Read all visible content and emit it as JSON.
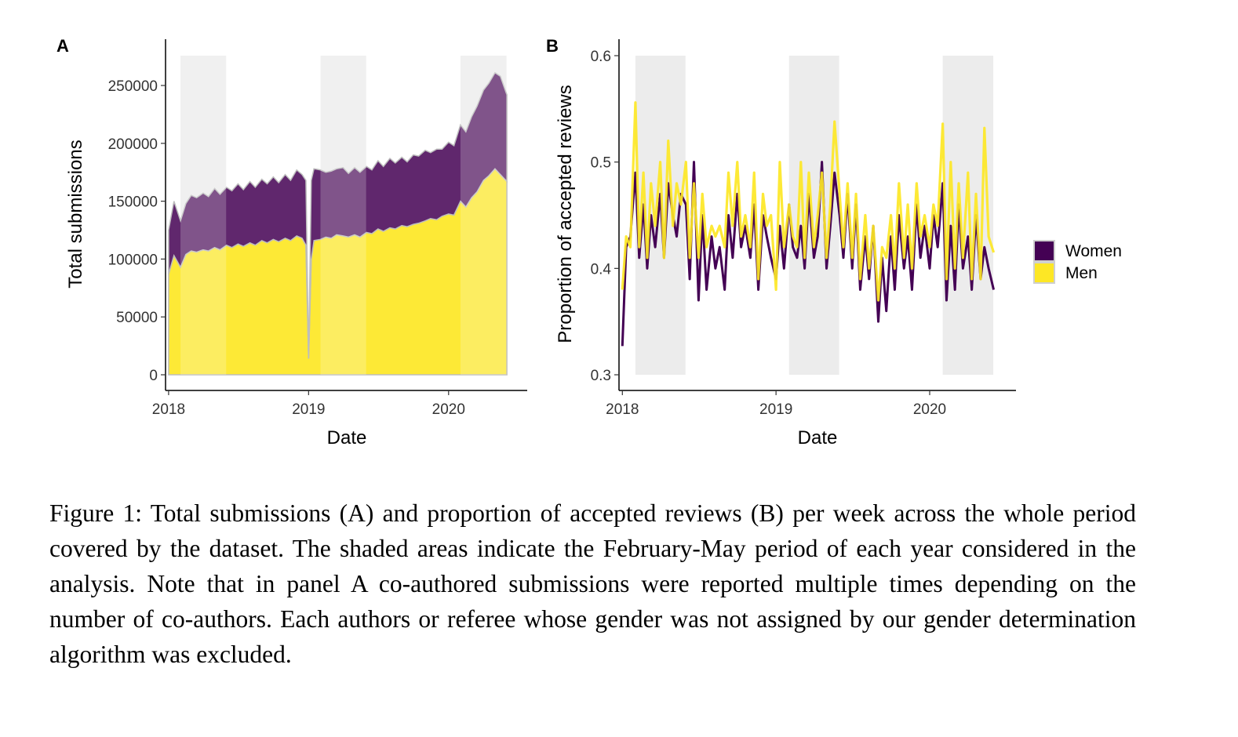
{
  "chart_data": [
    {
      "type": "area",
      "panel": "A",
      "xlabel": "Date",
      "ylabel": "Total submissions",
      "x_ticks": [
        "2018",
        "2019",
        "2020"
      ],
      "y_ticks": [
        0,
        50000,
        100000,
        150000,
        200000,
        250000
      ],
      "ylim": [
        0,
        290000
      ],
      "xlim": [
        "2017-12-24",
        "2020-07-24"
      ],
      "shaded_periods": [
        [
          "2018-02-01",
          "2018-05-31"
        ],
        [
          "2019-02-01",
          "2019-05-31"
        ],
        [
          "2020-02-01",
          "2020-05-31"
        ]
      ],
      "stacked": true,
      "series": [
        {
          "name": "Men",
          "x": [
            "2018-01-01",
            "2018-01-15",
            "2018-02-01",
            "2018-02-15",
            "2018-03-01",
            "2018-03-15",
            "2018-04-01",
            "2018-04-15",
            "2018-05-01",
            "2018-05-15",
            "2018-06-01",
            "2018-06-15",
            "2018-07-01",
            "2018-07-15",
            "2018-08-01",
            "2018-08-15",
            "2018-09-01",
            "2018-09-15",
            "2018-10-01",
            "2018-10-15",
            "2018-11-01",
            "2018-11-15",
            "2018-12-01",
            "2018-12-15",
            "2018-12-25",
            "2019-01-01",
            "2019-01-08",
            "2019-01-15",
            "2019-02-01",
            "2019-02-15",
            "2019-03-01",
            "2019-03-15",
            "2019-04-01",
            "2019-04-15",
            "2019-05-01",
            "2019-05-15",
            "2019-06-01",
            "2019-06-15",
            "2019-07-01",
            "2019-07-15",
            "2019-08-01",
            "2019-08-15",
            "2019-09-01",
            "2019-09-15",
            "2019-10-01",
            "2019-10-15",
            "2019-11-01",
            "2019-11-15",
            "2019-12-01",
            "2019-12-15",
            "2020-01-01",
            "2020-01-15",
            "2020-02-01",
            "2020-02-15",
            "2020-03-01",
            "2020-03-15",
            "2020-04-01",
            "2020-04-15",
            "2020-05-01",
            "2020-05-15",
            "2020-06-01"
          ],
          "values": [
            87000,
            103000,
            93000,
            104000,
            107000,
            106000,
            108000,
            107000,
            110000,
            108000,
            112000,
            110000,
            113000,
            111000,
            114000,
            112000,
            116000,
            114000,
            117000,
            115000,
            118000,
            116000,
            120000,
            118000,
            112000,
            14000,
            100000,
            116000,
            117000,
            119000,
            118000,
            121000,
            120000,
            119000,
            121000,
            119000,
            123000,
            122000,
            126000,
            124000,
            127000,
            126000,
            129000,
            128000,
            130000,
            131000,
            133000,
            135000,
            134000,
            137000,
            139000,
            138000,
            150000,
            145000,
            153000,
            158000,
            168000,
            172000,
            178000,
            173000,
            167000
          ]
        },
        {
          "name": "Women",
          "x": [
            "2018-01-01",
            "2018-01-15",
            "2018-02-01",
            "2018-02-15",
            "2018-03-01",
            "2018-03-15",
            "2018-04-01",
            "2018-04-15",
            "2018-05-01",
            "2018-05-15",
            "2018-06-01",
            "2018-06-15",
            "2018-07-01",
            "2018-07-15",
            "2018-08-01",
            "2018-08-15",
            "2018-09-01",
            "2018-09-15",
            "2018-10-01",
            "2018-10-15",
            "2018-11-01",
            "2018-11-15",
            "2018-12-01",
            "2018-12-15",
            "2018-12-25",
            "2019-01-01",
            "2019-01-08",
            "2019-01-15",
            "2019-02-01",
            "2019-02-15",
            "2019-03-01",
            "2019-03-15",
            "2019-04-01",
            "2019-04-15",
            "2019-05-01",
            "2019-05-15",
            "2019-06-01",
            "2019-06-15",
            "2019-07-01",
            "2019-07-15",
            "2019-08-01",
            "2019-08-15",
            "2019-09-01",
            "2019-09-15",
            "2019-10-01",
            "2019-10-15",
            "2019-11-01",
            "2019-11-15",
            "2019-12-01",
            "2019-12-15",
            "2020-01-01",
            "2020-01-15",
            "2020-02-01",
            "2020-02-15",
            "2020-03-01",
            "2020-03-15",
            "2020-04-01",
            "2020-04-15",
            "2020-05-01",
            "2020-05-15",
            "2020-06-01"
          ],
          "values": [
            38000,
            47000,
            40000,
            44000,
            48000,
            47000,
            49000,
            47000,
            51000,
            48000,
            50000,
            49000,
            52000,
            49000,
            53000,
            50000,
            53000,
            51000,
            54000,
            51000,
            55000,
            52000,
            57000,
            55000,
            56000,
            0,
            68000,
            62000,
            60000,
            56000,
            58000,
            57000,
            59000,
            55000,
            58000,
            56000,
            57000,
            55000,
            59000,
            56000,
            60000,
            57000,
            59000,
            56000,
            60000,
            58000,
            61000,
            57000,
            61000,
            58000,
            62000,
            60000,
            66000,
            65000,
            70000,
            74000,
            78000,
            80000,
            83000,
            85000,
            75000
          ]
        }
      ]
    },
    {
      "type": "line",
      "panel": "B",
      "xlabel": "Date",
      "ylabel": "Proportion of accepted reviews",
      "x_ticks": [
        "2018",
        "2019",
        "2020"
      ],
      "y_ticks": [
        0.3,
        0.4,
        0.5,
        0.6
      ],
      "ylim": [
        0.3,
        0.6
      ],
      "xlim": [
        "2017-12-24",
        "2020-07-24"
      ],
      "shaded_periods": [
        [
          "2018-02-01",
          "2018-05-31"
        ],
        [
          "2019-02-01",
          "2019-05-31"
        ],
        [
          "2020-02-01",
          "2020-05-31"
        ]
      ],
      "legend": {
        "placement": "right",
        "entries": [
          "Women",
          "Men"
        ]
      },
      "series": [
        {
          "name": "Women",
          "x": [
            "2018-01-01",
            "2018-01-10",
            "2018-01-20",
            "2018-02-01",
            "2018-02-10",
            "2018-02-20",
            "2018-03-01",
            "2018-03-10",
            "2018-03-20",
            "2018-04-01",
            "2018-04-10",
            "2018-04-20",
            "2018-05-01",
            "2018-05-10",
            "2018-05-20",
            "2018-06-01",
            "2018-06-10",
            "2018-06-20",
            "2018-07-01",
            "2018-07-10",
            "2018-07-20",
            "2018-08-01",
            "2018-08-10",
            "2018-08-20",
            "2018-09-01",
            "2018-09-10",
            "2018-09-20",
            "2018-10-01",
            "2018-10-10",
            "2018-10-20",
            "2018-11-01",
            "2018-11-10",
            "2018-11-20",
            "2018-12-01",
            "2018-12-10",
            "2018-12-20",
            "2019-01-01",
            "2019-01-10",
            "2019-01-20",
            "2019-02-01",
            "2019-02-10",
            "2019-02-20",
            "2019-03-01",
            "2019-03-10",
            "2019-03-20",
            "2019-04-01",
            "2019-04-10",
            "2019-04-20",
            "2019-05-01",
            "2019-05-10",
            "2019-05-20",
            "2019-06-01",
            "2019-06-10",
            "2019-06-20",
            "2019-07-01",
            "2019-07-10",
            "2019-07-20",
            "2019-08-01",
            "2019-08-10",
            "2019-08-20",
            "2019-09-01",
            "2019-09-10",
            "2019-09-20",
            "2019-10-01",
            "2019-10-10",
            "2019-10-20",
            "2019-11-01",
            "2019-11-10",
            "2019-11-20",
            "2019-12-01",
            "2019-12-10",
            "2019-12-20",
            "2020-01-01",
            "2020-01-10",
            "2020-01-20",
            "2020-02-01",
            "2020-02-10",
            "2020-02-20",
            "2020-03-01",
            "2020-03-10",
            "2020-03-20",
            "2020-04-01",
            "2020-04-10",
            "2020-04-20",
            "2020-05-01",
            "2020-05-10",
            "2020-05-20",
            "2020-06-01"
          ],
          "values": [
            0.327,
            0.42,
            0.43,
            0.49,
            0.41,
            0.46,
            0.4,
            0.45,
            0.42,
            0.47,
            0.41,
            0.48,
            0.45,
            0.43,
            0.47,
            0.46,
            0.39,
            0.5,
            0.37,
            0.45,
            0.38,
            0.43,
            0.4,
            0.42,
            0.38,
            0.45,
            0.41,
            0.47,
            0.42,
            0.44,
            0.41,
            0.46,
            0.38,
            0.45,
            0.43,
            0.41,
            0.39,
            0.44,
            0.4,
            0.46,
            0.42,
            0.41,
            0.44,
            0.4,
            0.47,
            0.41,
            0.43,
            0.5,
            0.4,
            0.44,
            0.49,
            0.45,
            0.41,
            0.47,
            0.4,
            0.46,
            0.38,
            0.43,
            0.39,
            0.44,
            0.35,
            0.41,
            0.36,
            0.43,
            0.38,
            0.45,
            0.4,
            0.43,
            0.38,
            0.46,
            0.41,
            0.44,
            0.4,
            0.45,
            0.42,
            0.48,
            0.37,
            0.44,
            0.38,
            0.46,
            0.4,
            0.43,
            0.38,
            0.45,
            0.39,
            0.42,
            0.4,
            0.38
          ]
        },
        {
          "name": "Men",
          "x": [
            "2018-01-01",
            "2018-01-10",
            "2018-01-20",
            "2018-02-01",
            "2018-02-10",
            "2018-02-20",
            "2018-03-01",
            "2018-03-10",
            "2018-03-20",
            "2018-04-01",
            "2018-04-10",
            "2018-04-20",
            "2018-05-01",
            "2018-05-10",
            "2018-05-20",
            "2018-06-01",
            "2018-06-10",
            "2018-06-20",
            "2018-07-01",
            "2018-07-10",
            "2018-07-20",
            "2018-08-01",
            "2018-08-10",
            "2018-08-20",
            "2018-09-01",
            "2018-09-10",
            "2018-09-20",
            "2018-10-01",
            "2018-10-10",
            "2018-10-20",
            "2018-11-01",
            "2018-11-10",
            "2018-11-20",
            "2018-12-01",
            "2018-12-10",
            "2018-12-20",
            "2019-01-01",
            "2019-01-10",
            "2019-01-20",
            "2019-02-01",
            "2019-02-10",
            "2019-02-20",
            "2019-03-01",
            "2019-03-10",
            "2019-03-20",
            "2019-04-01",
            "2019-04-10",
            "2019-04-20",
            "2019-05-01",
            "2019-05-10",
            "2019-05-20",
            "2019-06-01",
            "2019-06-10",
            "2019-06-20",
            "2019-07-01",
            "2019-07-10",
            "2019-07-20",
            "2019-08-01",
            "2019-08-10",
            "2019-08-20",
            "2019-09-01",
            "2019-09-10",
            "2019-09-20",
            "2019-10-01",
            "2019-10-10",
            "2019-10-20",
            "2019-11-01",
            "2019-11-10",
            "2019-11-20",
            "2019-12-01",
            "2019-12-10",
            "2019-12-20",
            "2020-01-01",
            "2020-01-10",
            "2020-01-20",
            "2020-02-01",
            "2020-02-10",
            "2020-02-20",
            "2020-03-01",
            "2020-03-10",
            "2020-03-20",
            "2020-04-01",
            "2020-04-10",
            "2020-04-20",
            "2020-05-01",
            "2020-05-10",
            "2020-05-20",
            "2020-06-01"
          ],
          "values": [
            0.38,
            0.43,
            0.42,
            0.556,
            0.42,
            0.49,
            0.41,
            0.48,
            0.44,
            0.5,
            0.41,
            0.52,
            0.44,
            0.48,
            0.46,
            0.5,
            0.41,
            0.48,
            0.41,
            0.47,
            0.42,
            0.44,
            0.43,
            0.44,
            0.42,
            0.49,
            0.44,
            0.5,
            0.43,
            0.45,
            0.42,
            0.49,
            0.39,
            0.47,
            0.44,
            0.45,
            0.38,
            0.5,
            0.42,
            0.46,
            0.43,
            0.42,
            0.5,
            0.41,
            0.49,
            0.42,
            0.45,
            0.49,
            0.41,
            0.46,
            0.538,
            0.47,
            0.42,
            0.48,
            0.41,
            0.47,
            0.39,
            0.45,
            0.4,
            0.44,
            0.37,
            0.42,
            0.41,
            0.45,
            0.4,
            0.48,
            0.41,
            0.46,
            0.4,
            0.48,
            0.43,
            0.45,
            0.42,
            0.46,
            0.44,
            0.536,
            0.39,
            0.5,
            0.4,
            0.48,
            0.41,
            0.49,
            0.39,
            0.47,
            0.39,
            0.532,
            0.43,
            0.415
          ]
        }
      ]
    }
  ],
  "colors": {
    "women": "#440154",
    "men": "#fde725",
    "shade": "#ececec",
    "area_edge": "#bdbdbd"
  },
  "caption": "Figure 1: Total submissions (A) and proportion of accepted reviews (B) per week across the whole period covered by the dataset. The shaded areas indicate the February-May period of each year considered in the analysis. Note that in panel A co-authored submissions were reported multiple times depending on the number of co-authors. Each authors or referee whose gender was not assigned by our gender determination algorithm was excluded."
}
